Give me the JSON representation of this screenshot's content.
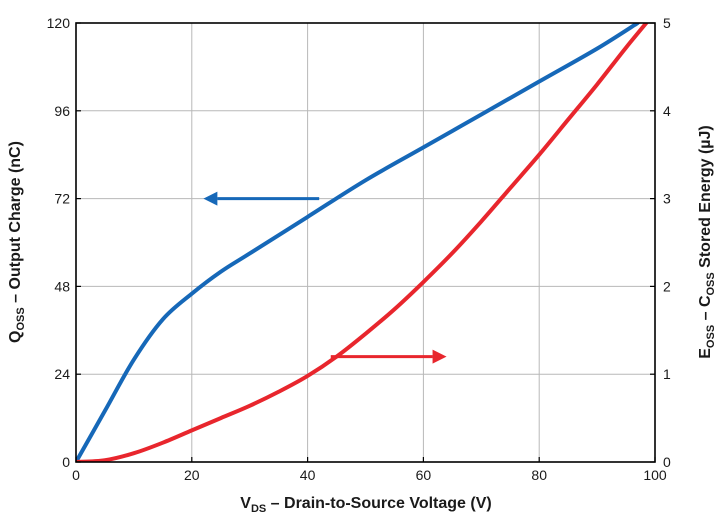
{
  "colors": {
    "qoss": "#1668b8",
    "eoss": "#e8262d",
    "grid": "#b8b8b8",
    "axis": "#000000"
  },
  "chart_data": {
    "type": "line",
    "title": "",
    "xlabel": {
      "main": "V",
      "sub": "DS",
      "rest": " – Drain-to-Source Voltage (V)"
    },
    "ylabel_left": {
      "main": "Q",
      "sub": "OSS",
      "rest": " – Output Charge (nC)"
    },
    "ylabel_right": {
      "main": "E",
      "sub1": "OSS",
      "mid": " – C",
      "sub2": "OSS",
      "rest": " Stored Energy (µJ)"
    },
    "xlim": [
      0,
      100
    ],
    "ylim_left": [
      0,
      120
    ],
    "ylim_right": [
      0,
      5
    ],
    "xticks": [
      0,
      20,
      40,
      60,
      80,
      100
    ],
    "yticks_left": [
      0,
      24,
      48,
      72,
      96,
      120
    ],
    "yticks_right": [
      0,
      1,
      2,
      3,
      4,
      5
    ],
    "grid": true,
    "series": [
      {
        "axis": "left",
        "color": "#1668b8",
        "x": [
          0,
          5,
          10,
          15,
          20,
          25,
          30,
          40,
          50,
          60,
          70,
          80,
          90,
          97
        ],
        "y": [
          0,
          14,
          28,
          39,
          46,
          52,
          57,
          67,
          77,
          86,
          95,
          104,
          113,
          120
        ]
      },
      {
        "axis": "right",
        "color": "#e8262d",
        "x": [
          0,
          5,
          10,
          15,
          20,
          25,
          30,
          35,
          40,
          45,
          50,
          55,
          60,
          65,
          70,
          75,
          80,
          85,
          90,
          95,
          100
        ],
        "y": [
          0,
          0.02,
          0.1,
          0.22,
          0.36,
          0.5,
          0.64,
          0.8,
          0.98,
          1.2,
          1.46,
          1.74,
          2.05,
          2.38,
          2.74,
          3.12,
          3.5,
          3.9,
          4.3,
          4.72,
          5.12
        ]
      }
    ],
    "annotations": [
      {
        "type": "arrow",
        "series_index": 0,
        "direction": "left",
        "x_start": 42,
        "x_end": 22,
        "y": 72,
        "axis": "left"
      },
      {
        "type": "arrow",
        "series_index": 1,
        "direction": "right",
        "x_start": 44,
        "x_end": 64,
        "y": 1.2,
        "axis": "right"
      }
    ]
  }
}
